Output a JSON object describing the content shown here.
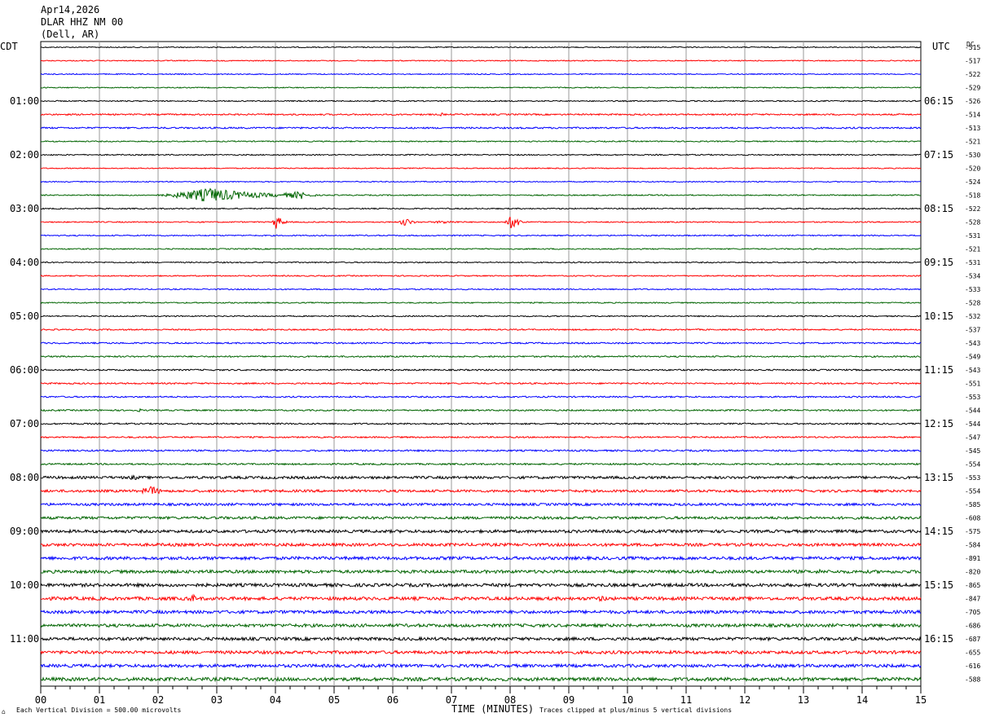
{
  "header": {
    "date": "Apr14,2026",
    "station": "DLAR HHZ NM 00",
    "location": "(Dell, AR)"
  },
  "left_timezone": "CDT",
  "right_timezone": "UTC",
  "dc_label": "DC",
  "footer": {
    "scale_note": "Each Vertical Division =  500.00 microvolts",
    "xlabel": "TIME (MINUTES)",
    "clip_note": "Traces clipped at plus/minus 5 vertical divisions"
  },
  "chart_data": {
    "type": "line",
    "title": "DLAR HHZ NM 00 (Dell, AR)",
    "xlabel": "TIME (MINUTES)",
    "xlim": [
      0,
      15
    ],
    "x_ticks": [
      "00",
      "01",
      "02",
      "03",
      "04",
      "05",
      "06",
      "07",
      "08",
      "09",
      "10",
      "11",
      "12",
      "13",
      "14",
      "15"
    ],
    "trace_colors": [
      "#000000",
      "#ff0000",
      "#0000ff",
      "#006400"
    ],
    "left_hour_labels": [
      "01:00",
      "02:00",
      "03:00",
      "04:00",
      "05:00",
      "06:00",
      "07:00",
      "08:00",
      "09:00",
      "10:00",
      "11:00"
    ],
    "right_hour_labels": [
      "06:15",
      "07:15",
      "08:15",
      "09:15",
      "10:15",
      "11:15",
      "12:15",
      "13:15",
      "14:15",
      "15:15",
      "16:15"
    ],
    "dc_offsets": [
      -515,
      -517,
      -522,
      -529,
      -526,
      -514,
      -513,
      -521,
      -530,
      -520,
      -524,
      -518,
      -522,
      -528,
      -531,
      -521,
      -531,
      -534,
      -533,
      -528,
      -532,
      -537,
      -543,
      -549,
      -543,
      -551,
      -553,
      -544,
      -544,
      -547,
      -545,
      -554,
      -553,
      -554,
      -585,
      -608,
      -575,
      -584,
      -891,
      -820,
      -865,
      -847,
      -705,
      -686,
      -687,
      -655,
      -616,
      -588
    ],
    "trace_noise": [
      0.6,
      0.6,
      0.6,
      0.6,
      0.7,
      0.9,
      1.0,
      0.7,
      0.7,
      0.6,
      0.6,
      0.7,
      0.7,
      0.7,
      0.7,
      0.7,
      0.7,
      0.7,
      0.7,
      0.7,
      0.7,
      0.8,
      0.9,
      0.9,
      0.9,
      0.9,
      0.9,
      0.9,
      0.9,
      0.9,
      1.0,
      1.0,
      1.6,
      1.5,
      1.5,
      1.6,
      1.8,
      1.8,
      1.9,
      1.9,
      2.0,
      2.0,
      1.9,
      1.9,
      1.9,
      1.9,
      1.9,
      2.1
    ],
    "events": [
      {
        "trace": 11,
        "start_min": 2.0,
        "end_min": 4.7,
        "peak_min": 2.9,
        "amplitude": 9,
        "label": "green burst"
      },
      {
        "trace": 11,
        "start_min": 3.8,
        "end_min": 4.6,
        "peak_min": 4.5,
        "amplitude": 5
      },
      {
        "trace": 12,
        "start_min": 2.9,
        "end_min": 3.0,
        "peak_min": 2.92,
        "amplitude": 4
      },
      {
        "trace": 13,
        "start_min": 3.95,
        "end_min": 4.2,
        "peak_min": 4.02,
        "amplitude": 12
      },
      {
        "trace": 13,
        "start_min": 6.1,
        "end_min": 6.5,
        "peak_min": 6.2,
        "amplitude": 6
      },
      {
        "trace": 13,
        "start_min": 6.5,
        "end_min": 7.7,
        "peak_min": 6.9,
        "amplitude": 2
      },
      {
        "trace": 13,
        "start_min": 7.9,
        "end_min": 8.3,
        "peak_min": 8.05,
        "amplitude": 10
      },
      {
        "trace": 5,
        "start_min": 6.7,
        "end_min": 7.0,
        "peak_min": 6.85,
        "amplitude": 2
      },
      {
        "trace": 32,
        "start_min": 1.3,
        "end_min": 2.0,
        "peak_min": 1.6,
        "amplitude": 3
      },
      {
        "trace": 33,
        "start_min": 1.6,
        "end_min": 2.3,
        "peak_min": 1.9,
        "amplitude": 6
      },
      {
        "trace": 41,
        "start_min": 2.4,
        "end_min": 2.8,
        "peak_min": 2.6,
        "amplitude": 5
      },
      {
        "trace": 41,
        "start_min": 9.3,
        "end_min": 9.8,
        "peak_min": 9.6,
        "amplitude": 4
      },
      {
        "trace": 27,
        "start_min": 1.5,
        "end_min": 1.8,
        "peak_min": 1.7,
        "amplitude": 2
      },
      {
        "trace": 39,
        "start_min": 13.0,
        "end_min": 13.6,
        "peak_min": 13.3,
        "amplitude": 3
      }
    ],
    "grid": true
  }
}
